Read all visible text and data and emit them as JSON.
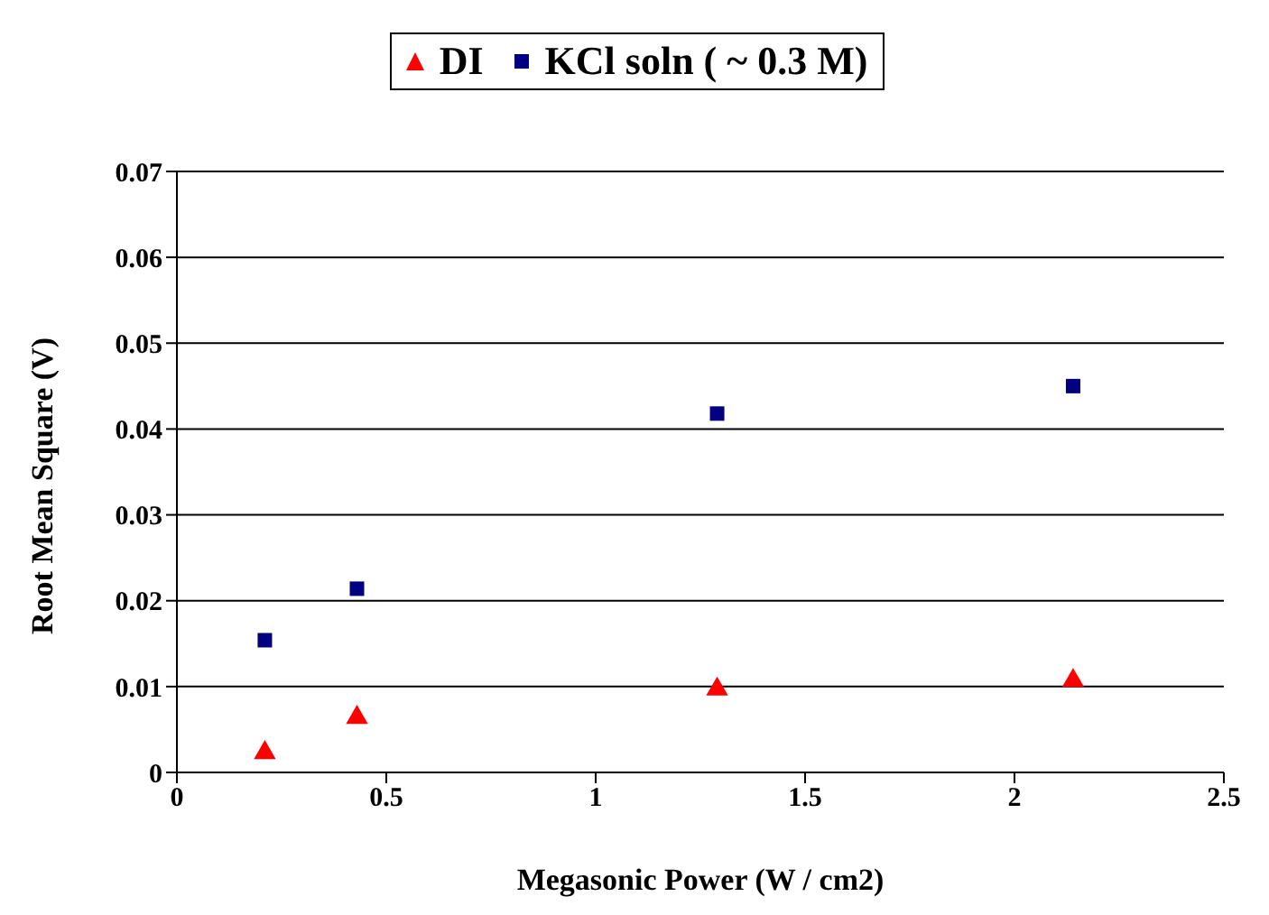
{
  "chart_data": {
    "type": "scatter",
    "xlabel": "Megasonic Power (W / cm2)",
    "ylabel": "Root Mean Square (V)",
    "series": [
      {
        "name": "DI",
        "color": "#ff0000",
        "marker": "triangle",
        "x": [
          0.21,
          0.43,
          1.29,
          2.14
        ],
        "values": [
          0.0023,
          0.0064,
          0.0097,
          0.0107
        ]
      },
      {
        "name": "KCl soln ( ~ 0.3 M)",
        "color": "#000080",
        "marker": "square",
        "x": [
          0.21,
          0.43,
          1.29,
          2.14
        ],
        "values": [
          0.0154,
          0.0214,
          0.0418,
          0.045
        ]
      }
    ],
    "xlim": [
      0,
      2.5
    ],
    "xticks": [
      0,
      0.5,
      1,
      1.5,
      2,
      2.5
    ],
    "ylim": [
      0,
      0.07
    ],
    "yticks": [
      0,
      0.01,
      0.02,
      0.03,
      0.04,
      0.05,
      0.06,
      0.07
    ],
    "grid": "y",
    "legend": "top"
  }
}
